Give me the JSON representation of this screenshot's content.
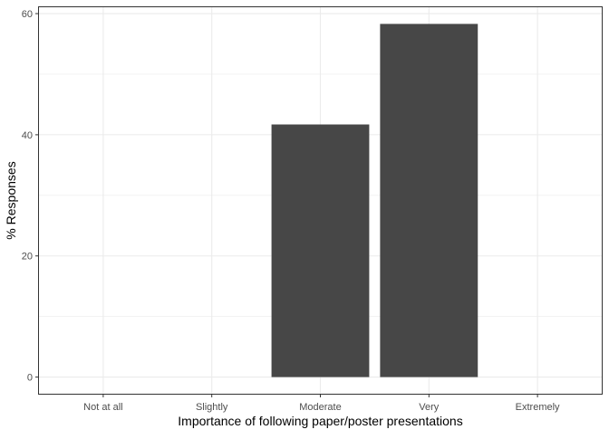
{
  "chart_data": {
    "type": "bar",
    "title": "",
    "xlabel": "Importance of following paper/poster presentations",
    "ylabel": "% Responses",
    "categories": [
      "Not at all",
      "Slightly",
      "Moderate",
      "Very",
      "Extremely"
    ],
    "values": [
      0,
      0,
      41.7,
      58.3,
      0
    ],
    "ylim": [
      -2.9,
      61.2
    ],
    "yticks": [
      0,
      20,
      40,
      60
    ],
    "ytick_labels": [
      "0",
      "20",
      "40",
      "60"
    ],
    "grid": true,
    "legend": "none",
    "colors": {
      "bar": "#474747",
      "grid": "#ebebeb",
      "panel_border": "#333333",
      "tick_text": "#4d4d4d",
      "axis_text": "#000000"
    }
  }
}
